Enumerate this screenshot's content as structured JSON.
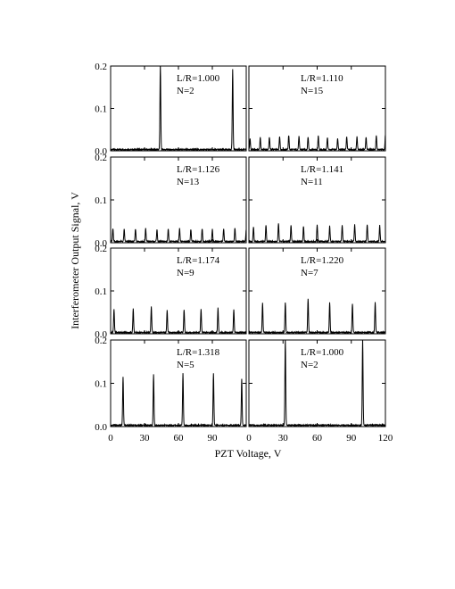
{
  "xlabel": "PZT Voltage, V",
  "ylabel": "Interferometer Output Signal, V",
  "x_ticks": [
    0,
    30,
    60,
    90,
    120
  ],
  "y_ticks_top": [
    "0.0",
    "0.1",
    "0.2"
  ],
  "chart_data": [
    {
      "type": "line",
      "label_ratio": "L/R=1.000",
      "label_n": "N=2",
      "xlim": [
        0,
        120
      ],
      "ylim": [
        0,
        0.2
      ],
      "peak_positions": [
        44,
        108
      ],
      "peak_heights": [
        0.2,
        0.19
      ]
    },
    {
      "type": "line",
      "label_ratio": "L/R=1.110",
      "label_n": "N=15",
      "xlim": [
        0,
        120
      ],
      "ylim": [
        0,
        0.2
      ],
      "peak_positions": [
        1,
        10,
        18,
        27,
        35,
        44,
        52,
        61,
        69,
        78,
        86,
        95,
        103,
        112,
        120
      ],
      "peak_heights": [
        0.025,
        0.028,
        0.03,
        0.032,
        0.034,
        0.031,
        0.03,
        0.032,
        0.029,
        0.027,
        0.03,
        0.031,
        0.029,
        0.032,
        0.034
      ]
    },
    {
      "type": "line",
      "label_ratio": "L/R=1.126",
      "label_n": "N=13",
      "xlim": [
        0,
        120
      ],
      "ylim": [
        0,
        0.2
      ],
      "peak_positions": [
        2,
        12,
        22,
        31,
        41,
        51,
        61,
        71,
        81,
        90,
        100,
        110,
        120
      ],
      "peak_heights": [
        0.03,
        0.028,
        0.03,
        0.03,
        0.028,
        0.03,
        0.03,
        0.029,
        0.03,
        0.028,
        0.03,
        0.032,
        0.029
      ]
    },
    {
      "type": "line",
      "label_ratio": "L/R=1.141",
      "label_n": "N=11",
      "xlim": [
        0,
        120
      ],
      "ylim": [
        0,
        0.2
      ],
      "peak_positions": [
        4,
        15,
        26,
        37,
        48,
        60,
        71,
        82,
        93,
        104,
        115
      ],
      "peak_heights": [
        0.035,
        0.038,
        0.042,
        0.038,
        0.036,
        0.04,
        0.036,
        0.038,
        0.04,
        0.04,
        0.038
      ]
    },
    {
      "type": "line",
      "label_ratio": "L/R=1.174",
      "label_n": "N=9",
      "xlim": [
        0,
        120
      ],
      "ylim": [
        0,
        0.2
      ],
      "peak_positions": [
        3,
        20,
        36,
        50,
        65,
        80,
        95,
        109
      ],
      "peak_heights": [
        0.055,
        0.055,
        0.06,
        0.052,
        0.054,
        0.055,
        0.057,
        0.054
      ]
    },
    {
      "type": "line",
      "label_ratio": "L/R=1.220",
      "label_n": "N=7",
      "xlim": [
        0,
        120
      ],
      "ylim": [
        0,
        0.2
      ],
      "peak_positions": [
        12,
        32,
        52,
        71,
        91,
        111
      ],
      "peak_heights": [
        0.07,
        0.07,
        0.078,
        0.07,
        0.068,
        0.07
      ]
    },
    {
      "type": "line",
      "label_ratio": "L/R=1.318",
      "label_n": "N=5",
      "xlim": [
        0,
        120
      ],
      "ylim": [
        0,
        0.2
      ],
      "peak_positions": [
        11,
        38,
        64,
        91,
        116
      ],
      "peak_heights": [
        0.112,
        0.118,
        0.12,
        0.12,
        0.108
      ]
    },
    {
      "type": "line",
      "label_ratio": "L/R=1.000",
      "label_n": "N=2",
      "xlim": [
        0,
        120
      ],
      "ylim": [
        0,
        0.2
      ],
      "peak_positions": [
        32,
        100
      ],
      "peak_heights": [
        0.2,
        0.198
      ]
    }
  ]
}
